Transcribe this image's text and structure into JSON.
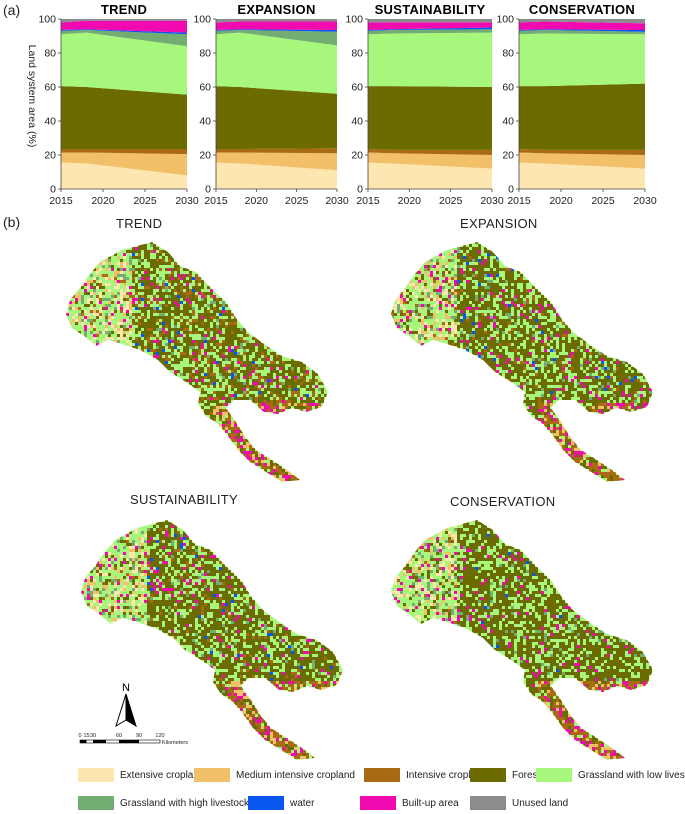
{
  "panel_labels": {
    "a": "(a)",
    "b": "(b)"
  },
  "colors": {
    "extensive": "#fde6b0",
    "medium": "#f3c06a",
    "intensive": "#a86a12",
    "forest": "#6b6b00",
    "grass_low": "#a6f77c",
    "grass_high": "#74ad72",
    "water": "#0a56f0",
    "builtup": "#f10ab0",
    "unused": "#8c8c8c"
  },
  "chart_data": [
    {
      "type": "area",
      "title": "TREND",
      "x": [
        2015,
        2018,
        2030
      ],
      "xticks": [
        "2015",
        "2020",
        "2025",
        "2030"
      ],
      "yticks": [
        "0",
        "20",
        "40",
        "60",
        "80",
        "100"
      ],
      "ylabel": "Land system area (%)",
      "ylim": [
        0,
        100
      ],
      "series": [
        {
          "name": "Extensive cropland",
          "values": [
            15.5,
            15,
            8
          ]
        },
        {
          "name": "Medium intensive cropland",
          "values": [
            6,
            6.5,
            12.5
          ]
        },
        {
          "name": "Intensive cropland",
          "values": [
            2,
            2,
            3
          ]
        },
        {
          "name": "Forest",
          "values": [
            37,
            36.5,
            32
          ]
        },
        {
          "name": "Grassland with low livestock",
          "values": [
            30.5,
            32,
            28.5
          ]
        },
        {
          "name": "Grassland with high livestock",
          "values": [
            2,
            1.5,
            7
          ]
        },
        {
          "name": "water",
          "values": [
            0.5,
            0.5,
            1
          ]
        },
        {
          "name": "Built-up area",
          "values": [
            4.5,
            5,
            7
          ]
        },
        {
          "name": "Unused land",
          "values": [
            2,
            1,
            1
          ]
        }
      ]
    },
    {
      "type": "area",
      "title": "EXPANSION",
      "x": [
        2015,
        2018,
        2030
      ],
      "xticks": [
        "2015",
        "2020",
        "2025",
        "2030"
      ],
      "yticks": [
        "0",
        "20",
        "40",
        "60",
        "80",
        "100"
      ],
      "ylim": [
        0,
        100
      ],
      "series": [
        {
          "name": "Extensive cropland",
          "values": [
            15.5,
            15,
            11
          ]
        },
        {
          "name": "Medium intensive cropland",
          "values": [
            6,
            6.5,
            10
          ]
        },
        {
          "name": "Intensive cropland",
          "values": [
            2,
            2,
            3
          ]
        },
        {
          "name": "Forest",
          "values": [
            37,
            36.5,
            32
          ]
        },
        {
          "name": "Grassland with low livestock",
          "values": [
            30.5,
            32,
            28.5
          ]
        },
        {
          "name": "Grassland with high livestock",
          "values": [
            2,
            1.5,
            8
          ]
        },
        {
          "name": "water",
          "values": [
            0.5,
            0.5,
            1
          ]
        },
        {
          "name": "Built-up area",
          "values": [
            4.5,
            4.5,
            5
          ]
        },
        {
          "name": "Unused land",
          "values": [
            2,
            1.5,
            1.5
          ]
        }
      ]
    },
    {
      "type": "area",
      "title": "SUSTAINABILITY",
      "x": [
        2015,
        2018,
        2030
      ],
      "xticks": [
        "2015",
        "2020",
        "2025",
        "2030"
      ],
      "yticks": [
        "0",
        "20",
        "40",
        "60",
        "80",
        "100"
      ],
      "ylim": [
        0,
        100
      ],
      "series": [
        {
          "name": "Extensive cropland",
          "values": [
            15.5,
            15,
            12
          ]
        },
        {
          "name": "Medium intensive cropland",
          "values": [
            6,
            6,
            8
          ]
        },
        {
          "name": "Intensive cropland",
          "values": [
            2,
            2,
            3
          ]
        },
        {
          "name": "Forest",
          "values": [
            37,
            37.5,
            37
          ]
        },
        {
          "name": "Grassland with low livestock",
          "values": [
            30.5,
            31,
            32
          ]
        },
        {
          "name": "Grassland with high livestock",
          "values": [
            2,
            2,
            2
          ]
        },
        {
          "name": "water",
          "values": [
            0.5,
            0.5,
            1
          ]
        },
        {
          "name": "Built-up area",
          "values": [
            4.5,
            4,
            3
          ]
        },
        {
          "name": "Unused land",
          "values": [
            2,
            2,
            2
          ]
        }
      ]
    },
    {
      "type": "area",
      "title": "CONSERVATION",
      "x": [
        2015,
        2018,
        2030
      ],
      "xticks": [
        "2015",
        "2020",
        "2025",
        "2030"
      ],
      "yticks": [
        "0",
        "20",
        "40",
        "60",
        "80",
        "100"
      ],
      "ylim": [
        0,
        100
      ],
      "series": [
        {
          "name": "Extensive cropland",
          "values": [
            15.5,
            15,
            12
          ]
        },
        {
          "name": "Medium intensive cropland",
          "values": [
            6,
            6,
            8
          ]
        },
        {
          "name": "Intensive cropland",
          "values": [
            2,
            2,
            3
          ]
        },
        {
          "name": "Forest",
          "values": [
            37,
            37.5,
            39
          ]
        },
        {
          "name": "Grassland with low livestock",
          "values": [
            30.5,
            31,
            29
          ]
        },
        {
          "name": "Grassland with high livestock",
          "values": [
            2,
            2,
            1.5
          ]
        },
        {
          "name": "water",
          "values": [
            0.5,
            0.5,
            1
          ]
        },
        {
          "name": "Built-up area",
          "values": [
            4.5,
            4.5,
            4
          ]
        },
        {
          "name": "Unused land",
          "values": [
            2,
            1.5,
            2.5
          ]
        }
      ]
    }
  ],
  "maps": [
    {
      "title": "TREND"
    },
    {
      "title": "EXPANSION"
    },
    {
      "title": "SUSTAINABILITY"
    },
    {
      "title": "CONSERVATION"
    }
  ],
  "north_arrow": "N",
  "scale": {
    "ticks": [
      "0",
      "15",
      "30",
      "60",
      "90",
      "120"
    ],
    "unit": "Kilometers"
  },
  "legend": [
    {
      "label": "Extensive cropland",
      "color_key": "extensive"
    },
    {
      "label": "Medium intensive cropland",
      "color_key": "medium"
    },
    {
      "label": "Intensive cropland",
      "color_key": "intensive"
    },
    {
      "label": "Forest",
      "color_key": "forest"
    },
    {
      "label": "Grassland with low livestock",
      "color_key": "grass_low"
    },
    {
      "label": "Grassland with high livestock",
      "color_key": "grass_high"
    },
    {
      "label": "water",
      "color_key": "water"
    },
    {
      "label": "Built-up area",
      "color_key": "builtup"
    },
    {
      "label": "Unused land",
      "color_key": "unused"
    }
  ]
}
